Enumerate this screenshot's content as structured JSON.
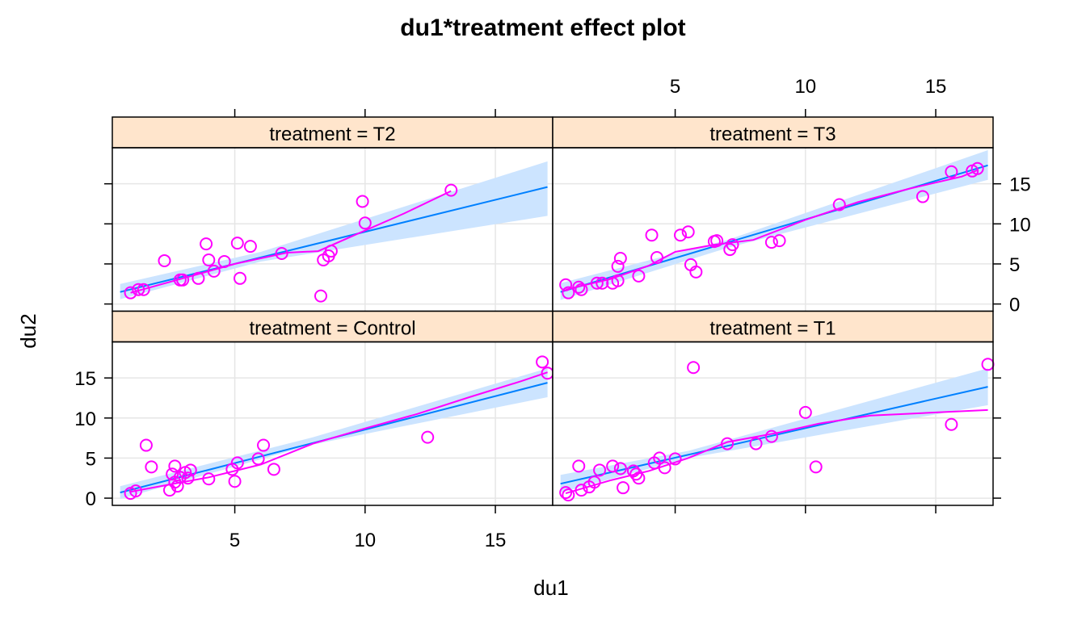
{
  "colors": {
    "fit_line": "#0080ff",
    "band": "#cce4ff",
    "smooth": "#ff00ff",
    "points": "#ff00ff",
    "strip": "#ffe5cc",
    "grid": "#e6e6e6"
  },
  "chart_data": {
    "type": "scatter",
    "title": "du1*treatment effect plot",
    "xlabel": "du1",
    "ylabel": "du2",
    "xlim": [
      0.3,
      17.2
    ],
    "ylim": [
      -0.9,
      19.5
    ],
    "xticks": [
      5,
      10,
      15
    ],
    "yticks": [
      0,
      5,
      10,
      15
    ],
    "panels": [
      {
        "key": "T2",
        "strip": "treatment = T2",
        "row": 0,
        "col": 0,
        "fit": {
          "x0": 0.6,
          "y0": 1.5,
          "x1": 17.0,
          "y1": 14.6
        },
        "band": {
          "lower": [
            [
              0.6,
              0.6
            ],
            [
              6.0,
              5.3
            ],
            [
              17.0,
              11.0
            ]
          ],
          "upper": [
            [
              0.6,
              2.5
            ],
            [
              6.0,
              6.5
            ],
            [
              17.0,
              17.8
            ]
          ]
        },
        "smooth": [
          [
            1.0,
            1.4
          ],
          [
            3.0,
            3.2
          ],
          [
            5.0,
            5.0
          ],
          [
            7.0,
            6.4
          ],
          [
            8.2,
            6.6
          ],
          [
            9.6,
            8.6
          ],
          [
            11.5,
            11.3
          ],
          [
            13.3,
            14.1
          ]
        ],
        "points": [
          [
            1.0,
            1.4
          ],
          [
            1.3,
            1.8
          ],
          [
            1.5,
            1.8
          ],
          [
            2.3,
            5.4
          ],
          [
            2.9,
            3.0
          ],
          [
            3.0,
            3.0
          ],
          [
            3.6,
            3.2
          ],
          [
            3.9,
            7.5
          ],
          [
            4.0,
            5.5
          ],
          [
            4.2,
            4.1
          ],
          [
            4.6,
            5.3
          ],
          [
            5.1,
            7.6
          ],
          [
            5.2,
            3.2
          ],
          [
            5.6,
            7.2
          ],
          [
            6.8,
            6.3
          ],
          [
            8.3,
            1.0
          ],
          [
            8.4,
            5.5
          ],
          [
            8.6,
            6.0
          ],
          [
            8.7,
            6.6
          ],
          [
            9.9,
            12.8
          ],
          [
            10.0,
            10.1
          ],
          [
            13.3,
            14.2
          ]
        ]
      },
      {
        "key": "T3",
        "strip": "treatment = T3",
        "row": 0,
        "col": 1,
        "fit": {
          "x0": 0.6,
          "y0": 1.5,
          "x1": 17.0,
          "y1": 17.3
        },
        "band": {
          "lower": [
            [
              0.6,
              0.5
            ],
            [
              7.0,
              7.0
            ],
            [
              17.0,
              15.5
            ]
          ],
          "upper": [
            [
              0.6,
              2.6
            ],
            [
              7.0,
              8.0
            ],
            [
              17.0,
              19.2
            ]
          ]
        },
        "smooth": [
          [
            0.8,
            1.8
          ],
          [
            2.5,
            3.1
          ],
          [
            4.0,
            4.8
          ],
          [
            5.0,
            6.5
          ],
          [
            6.5,
            7.4
          ],
          [
            8.0,
            8.0
          ],
          [
            10.0,
            10.5
          ],
          [
            12.0,
            12.7
          ],
          [
            14.0,
            14.4
          ],
          [
            16.0,
            15.9
          ],
          [
            16.6,
            16.7
          ]
        ],
        "points": [
          [
            0.8,
            2.4
          ],
          [
            0.9,
            1.4
          ],
          [
            1.3,
            2.1
          ],
          [
            1.4,
            1.8
          ],
          [
            2.0,
            2.6
          ],
          [
            2.2,
            2.6
          ],
          [
            2.6,
            2.6
          ],
          [
            2.8,
            4.7
          ],
          [
            2.8,
            2.9
          ],
          [
            2.9,
            5.7
          ],
          [
            3.6,
            3.5
          ],
          [
            4.1,
            8.6
          ],
          [
            4.3,
            5.8
          ],
          [
            5.2,
            8.6
          ],
          [
            5.5,
            9.0
          ],
          [
            5.6,
            4.9
          ],
          [
            5.8,
            4.0
          ],
          [
            6.5,
            7.8
          ],
          [
            6.6,
            7.9
          ],
          [
            7.1,
            6.8
          ],
          [
            7.2,
            7.4
          ],
          [
            8.7,
            7.7
          ],
          [
            9.0,
            7.9
          ],
          [
            11.3,
            12.4
          ],
          [
            14.5,
            13.4
          ],
          [
            15.6,
            16.5
          ],
          [
            16.4,
            16.6
          ],
          [
            16.6,
            16.9
          ]
        ]
      },
      {
        "key": "Control",
        "strip": "treatment = Control",
        "row": 1,
        "col": 0,
        "fit": {
          "x0": 0.6,
          "y0": 0.7,
          "x1": 17.0,
          "y1": 14.4
        },
        "band": {
          "lower": [
            [
              0.6,
              -0.1
            ],
            [
              8.0,
              6.7
            ],
            [
              17.0,
              12.6
            ]
          ],
          "upper": [
            [
              0.6,
              1.5
            ],
            [
              8.0,
              7.6
            ],
            [
              17.0,
              16.2
            ]
          ]
        },
        "smooth": [
          [
            1.0,
            0.8
          ],
          [
            4.0,
            2.6
          ],
          [
            6.0,
            4.2
          ],
          [
            8.0,
            6.8
          ],
          [
            10.0,
            8.7
          ],
          [
            12.0,
            10.5
          ],
          [
            14.0,
            12.6
          ],
          [
            16.0,
            14.6
          ],
          [
            17.0,
            15.7
          ]
        ],
        "points": [
          [
            1.0,
            0.6
          ],
          [
            1.2,
            0.9
          ],
          [
            1.6,
            6.6
          ],
          [
            1.8,
            3.9
          ],
          [
            2.5,
            1.0
          ],
          [
            2.6,
            3.0
          ],
          [
            2.7,
            4.0
          ],
          [
            2.7,
            2.0
          ],
          [
            2.8,
            1.5
          ],
          [
            2.9,
            2.6
          ],
          [
            3.1,
            3.2
          ],
          [
            3.2,
            2.5
          ],
          [
            3.3,
            3.5
          ],
          [
            4.0,
            2.4
          ],
          [
            4.9,
            3.6
          ],
          [
            5.0,
            2.1
          ],
          [
            5.1,
            4.4
          ],
          [
            5.9,
            4.9
          ],
          [
            6.1,
            6.6
          ],
          [
            6.5,
            3.6
          ],
          [
            12.4,
            7.6
          ],
          [
            16.8,
            17.0
          ],
          [
            17.0,
            15.6
          ]
        ]
      },
      {
        "key": "T1",
        "strip": "treatment = T1",
        "row": 1,
        "col": 1,
        "fit": {
          "x0": 0.6,
          "y0": 1.8,
          "x1": 17.0,
          "y1": 13.9
        },
        "band": {
          "lower": [
            [
              0.6,
              0.7
            ],
            [
              5.5,
              5.0
            ],
            [
              17.0,
              11.6
            ]
          ],
          "upper": [
            [
              0.6,
              2.9
            ],
            [
              5.5,
              5.9
            ],
            [
              17.0,
              16.2
            ]
          ]
        },
        "smooth": [
          [
            0.8,
            0.6
          ],
          [
            2.5,
            2.2
          ],
          [
            4.0,
            3.4
          ],
          [
            5.5,
            5.0
          ],
          [
            7.0,
            7.0
          ],
          [
            9.0,
            8.2
          ],
          [
            10.5,
            9.3
          ],
          [
            12.5,
            10.3
          ],
          [
            15.0,
            10.7
          ],
          [
            17.0,
            11.0
          ]
        ],
        "points": [
          [
            0.8,
            0.7
          ],
          [
            0.9,
            0.4
          ],
          [
            1.3,
            4.0
          ],
          [
            1.4,
            1.0
          ],
          [
            1.7,
            1.4
          ],
          [
            1.9,
            2.0
          ],
          [
            2.1,
            3.5
          ],
          [
            2.6,
            4.0
          ],
          [
            2.9,
            3.7
          ],
          [
            3.0,
            1.3
          ],
          [
            3.4,
            3.4
          ],
          [
            3.5,
            3.0
          ],
          [
            3.6,
            2.5
          ],
          [
            4.2,
            4.4
          ],
          [
            4.4,
            5.0
          ],
          [
            4.6,
            3.8
          ],
          [
            5.0,
            4.9
          ],
          [
            5.7,
            16.3
          ],
          [
            7.0,
            6.8
          ],
          [
            8.1,
            6.8
          ],
          [
            8.7,
            7.7
          ],
          [
            10.0,
            10.7
          ],
          [
            10.4,
            3.9
          ],
          [
            15.6,
            9.2
          ],
          [
            17.0,
            16.7
          ]
        ]
      }
    ]
  }
}
